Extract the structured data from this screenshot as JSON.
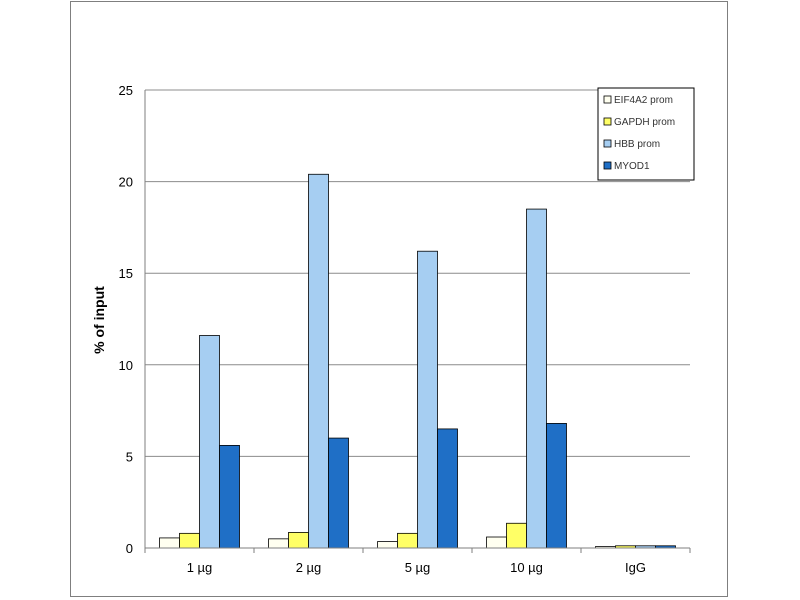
{
  "chart_data": {
    "type": "bar",
    "title": "",
    "xlabel": "",
    "ylabel": "% of input",
    "ylim": [
      0,
      25
    ],
    "yticks": [
      0,
      5,
      10,
      15,
      20,
      25
    ],
    "grid": true,
    "legend_position": "top-right",
    "categories": [
      "1 µg",
      "2 µg",
      "5 µg",
      "10 µg",
      "IgG"
    ],
    "series": [
      {
        "name": "EIF4A2 prom",
        "color": "#fffff0",
        "values": [
          0.55,
          0.5,
          0.35,
          0.6,
          0.08
        ]
      },
      {
        "name": "GAPDH prom",
        "color": "#ffff66",
        "values": [
          0.8,
          0.85,
          0.8,
          1.35,
          0.12
        ]
      },
      {
        "name": "HBB prom",
        "color": "#a6cef2",
        "values": [
          11.6,
          20.4,
          16.2,
          18.5,
          0.12
        ]
      },
      {
        "name": "MYOD1",
        "color": "#1f6fc6",
        "values": [
          5.6,
          6.0,
          6.5,
          6.8,
          0.12
        ]
      }
    ]
  }
}
